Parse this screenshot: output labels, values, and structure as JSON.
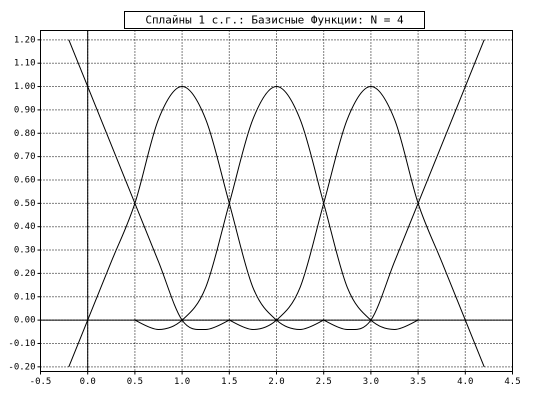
{
  "chart_data": {
    "type": "line",
    "title": "Сплайны 1 с.г.: Базисные Функции: N = 4",
    "xlim": [
      -0.5,
      4.5
    ],
    "ylim": [
      -0.22,
      1.24
    ],
    "grid": true,
    "color": "#000000",
    "xticks": [
      {
        "value": -0.5,
        "label": "-0.5"
      },
      {
        "value": 0,
        "label": "0.0"
      },
      {
        "value": 0.5,
        "label": "0.5"
      },
      {
        "value": 1,
        "label": "1.0"
      },
      {
        "value": 1.5,
        "label": "1.5"
      },
      {
        "value": 2,
        "label": "2.0"
      },
      {
        "value": 2.5,
        "label": "2.5"
      },
      {
        "value": 3,
        "label": "3.0"
      },
      {
        "value": 3.5,
        "label": "3.5"
      },
      {
        "value": 4,
        "label": "4.0"
      },
      {
        "value": 4.5,
        "label": "4.5"
      }
    ],
    "yticks": [
      {
        "value": -0.2,
        "label": "-0.20"
      },
      {
        "value": -0.1,
        "label": "-0.10"
      },
      {
        "value": 0,
        "label": "0.00"
      },
      {
        "value": 0.1,
        "label": "0.10"
      },
      {
        "value": 0.2,
        "label": "0.20"
      },
      {
        "value": 0.3,
        "label": "0.30"
      },
      {
        "value": 0.4,
        "label": "0.40"
      },
      {
        "value": 0.5,
        "label": "0.50"
      },
      {
        "value": 0.6,
        "label": "0.60"
      },
      {
        "value": 0.7,
        "label": "0.70"
      },
      {
        "value": 0.8,
        "label": "0.80"
      },
      {
        "value": 0.9,
        "label": "0.90"
      },
      {
        "value": 1,
        "label": "1.00"
      },
      {
        "value": 1.1,
        "label": "1.10"
      },
      {
        "value": 1.2,
        "label": "1.20"
      }
    ],
    "series": [
      {
        "x": [
          -0.2,
          0,
          0.25,
          0.5,
          0.75,
          1,
          1.25,
          1.5
        ],
        "values": [
          1.2,
          1,
          0.75,
          0.5,
          0.25,
          0,
          -0.04,
          0
        ]
      },
      {
        "x": [
          -0.2,
          0,
          0.25,
          0.5,
          0.75,
          1,
          1.25,
          1.5,
          1.75,
          2,
          2.25,
          2.5
        ],
        "values": [
          -0.2,
          0,
          0.25,
          0.5,
          0.86,
          1,
          0.86,
          0.5,
          0.14,
          0,
          -0.04,
          0
        ]
      },
      {
        "x": [
          0.5,
          0.75,
          1,
          1.25,
          1.5,
          1.75,
          2,
          2.25,
          2.5,
          2.75,
          3,
          3.25,
          3.5
        ],
        "values": [
          0,
          -0.04,
          0,
          0.14,
          0.5,
          0.86,
          1,
          0.86,
          0.5,
          0.14,
          0,
          -0.04,
          0
        ]
      },
      {
        "x": [
          1.5,
          1.75,
          2,
          2.25,
          2.5,
          2.75,
          3,
          3.25,
          3.5,
          3.75,
          4,
          4.2
        ],
        "values": [
          0,
          -0.04,
          0,
          0.14,
          0.5,
          0.86,
          1,
          0.86,
          0.5,
          0.25,
          0,
          -0.2
        ]
      },
      {
        "x": [
          2.5,
          2.75,
          3,
          3.25,
          3.5,
          3.75,
          4,
          4.2
        ],
        "values": [
          0,
          -0.04,
          0,
          0.25,
          0.5,
          0.75,
          1,
          1.2
        ]
      }
    ]
  }
}
